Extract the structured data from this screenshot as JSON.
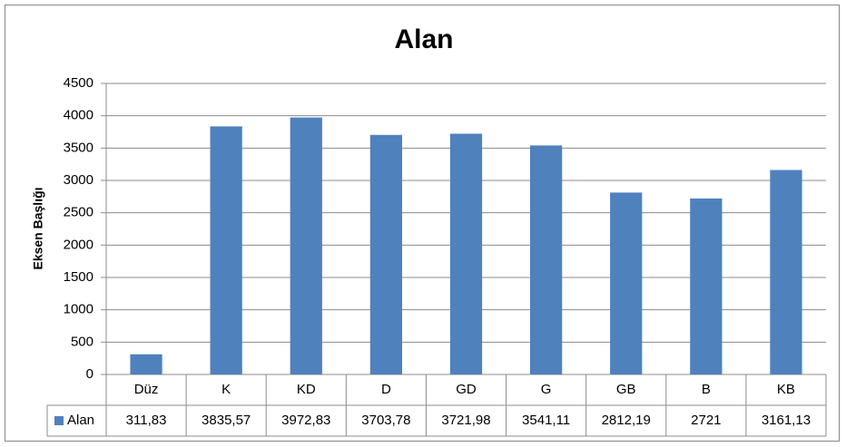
{
  "chart_data": {
    "type": "bar",
    "title": "Alan",
    "y_label": "Eksen Başlığı",
    "categories": [
      "Düz",
      "K",
      "KD",
      "D",
      "GD",
      "G",
      "GB",
      "B",
      "KB"
    ],
    "series": [
      {
        "name": "Alan",
        "color": "#4f81bd",
        "values": [
          311.83,
          3835.57,
          3972.83,
          3703.78,
          3721.98,
          3541.11,
          2812.19,
          2721,
          3161.13
        ],
        "value_labels": [
          "311,83",
          "3835,57",
          "3972,83",
          "3703,78",
          "3721,98",
          "3541,11",
          "2812,19",
          "2721",
          "3161,13"
        ]
      }
    ],
    "ylim": [
      0,
      4500
    ],
    "yticks": [
      0,
      500,
      1000,
      1500,
      2000,
      2500,
      3000,
      3500,
      4000,
      4500
    ],
    "grid": true
  }
}
